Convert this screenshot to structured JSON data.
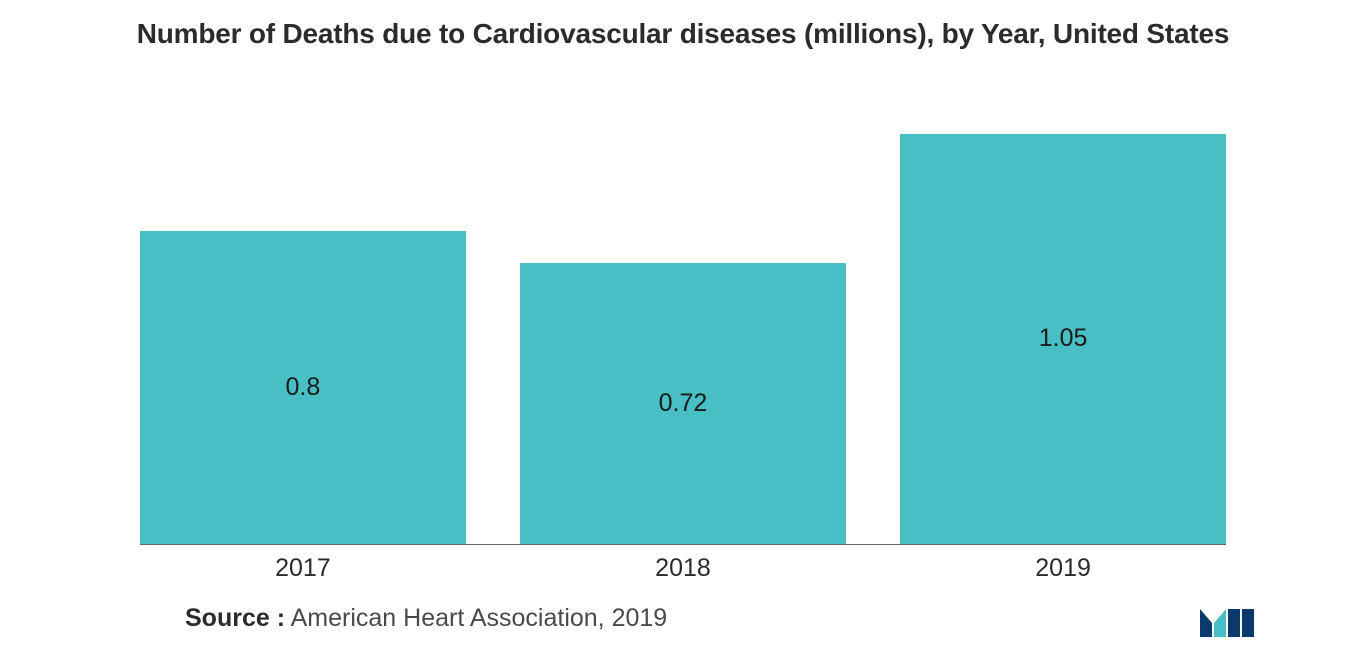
{
  "chart": {
    "type": "bar",
    "title": "Number of Deaths due to Cardiovascular diseases (millions), by Year, United States",
    "title_fontsize": 28,
    "title_color": "#2b2b2b",
    "background_color": "#ffffff",
    "bar_color": "#48bfc4",
    "axis_line_color": "#666666",
    "label_color": "#1a1a1a",
    "label_fontsize": 25,
    "xlabel_fontsize": 25,
    "xlabel_color": "#2b2b2b",
    "ylim": [
      0,
      1.2
    ],
    "bar_width_pct": 30,
    "categories": [
      "2017",
      "2018",
      "2019"
    ],
    "values": [
      0.8,
      0.72,
      1.05
    ],
    "value_labels": [
      "0.8",
      "0.72",
      "1.05"
    ]
  },
  "source": {
    "label": "Source :",
    "text": " American Heart Association, 2019",
    "fontsize": 25,
    "label_color": "#2b2b2b",
    "text_color": "#4a4a4a"
  },
  "logo": {
    "name": "mi-logo",
    "color_primary": "#0a3a6b",
    "color_accent": "#48bfc4"
  }
}
